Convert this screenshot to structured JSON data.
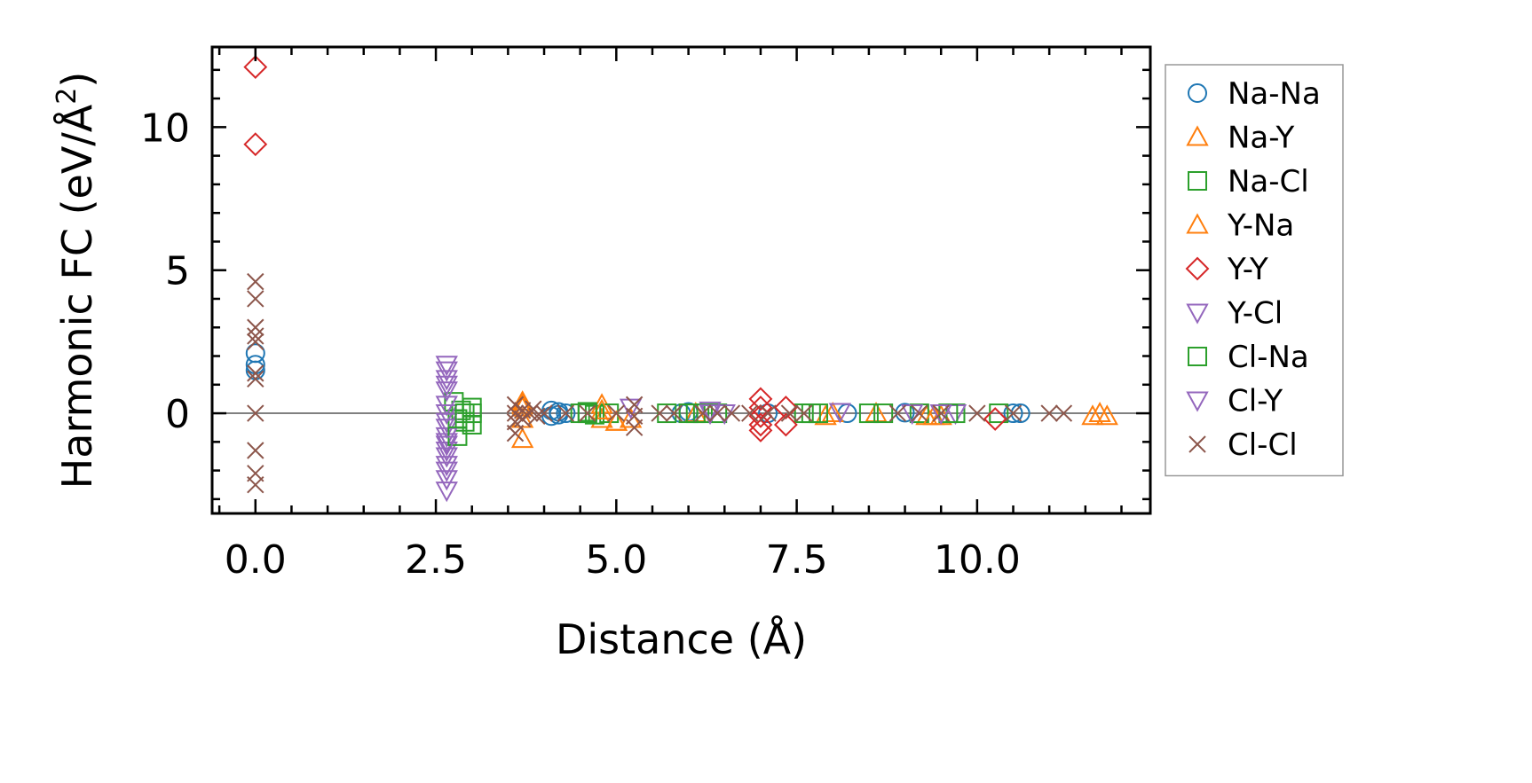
{
  "chart_data": {
    "type": "scatter",
    "title": "",
    "xlabel": "Distance (Å)",
    "ylabel": "Harmonic FC (eV/Å²)",
    "ylabel_parts": {
      "main": "Harmonic FC (eV/Å",
      "sup": "2",
      "close": ")"
    },
    "xlim": [
      -0.6,
      12.4
    ],
    "ylim": [
      -3.5,
      12.8
    ],
    "xticks": [
      0.0,
      2.5,
      5.0,
      7.5,
      10.0
    ],
    "xtick_labels": [
      "0.0",
      "2.5",
      "5.0",
      "7.5",
      "10.0"
    ],
    "yticks": [
      0,
      5,
      10
    ],
    "ytick_labels": [
      "0",
      "5",
      "10"
    ],
    "grid": false,
    "reference_line_y": 0,
    "legend_position": "outside-right",
    "series": [
      {
        "name": "Na-Na",
        "marker": "circle",
        "color": "#1f77b4",
        "points": [
          [
            0,
            2.1
          ],
          [
            0,
            1.7
          ],
          [
            0,
            1.5
          ],
          [
            4.1,
            0.1
          ],
          [
            4.1,
            -0.1
          ],
          [
            4.2,
            0.05
          ],
          [
            4.2,
            -0.05
          ],
          [
            4.3,
            0.0
          ],
          [
            5.9,
            0.0
          ],
          [
            6.0,
            0.05
          ],
          [
            7.1,
            0.0
          ],
          [
            8.2,
            0.0
          ],
          [
            9.0,
            0.02
          ],
          [
            10.5,
            0.0
          ],
          [
            10.6,
            0.0
          ]
        ]
      },
      {
        "name": "Na-Y",
        "marker": "triangle-up",
        "color": "#ff7f0e",
        "points": [
          [
            3.7,
            0.4
          ],
          [
            3.7,
            0.2
          ],
          [
            3.7,
            -0.2
          ],
          [
            3.7,
            -0.9
          ],
          [
            4.8,
            0.3
          ],
          [
            4.8,
            -0.2
          ],
          [
            5.0,
            -0.3
          ],
          [
            5.2,
            -0.2
          ],
          [
            6.1,
            0.0
          ],
          [
            7.9,
            -0.1
          ],
          [
            8.0,
            0.0
          ],
          [
            8.6,
            0.0
          ],
          [
            9.3,
            -0.1
          ],
          [
            9.5,
            -0.1
          ],
          [
            11.6,
            -0.1
          ],
          [
            11.8,
            -0.1
          ]
        ]
      },
      {
        "name": "Na-Cl",
        "marker": "square",
        "color": "#2ca02c",
        "points": [
          [
            2.75,
            0.4
          ],
          [
            2.8,
            -0.2
          ],
          [
            2.85,
            0.1
          ],
          [
            2.9,
            -0.3
          ],
          [
            3.0,
            -0.4
          ],
          [
            3.0,
            0.2
          ],
          [
            3.0,
            0.0
          ],
          [
            4.5,
            0.0
          ],
          [
            4.6,
            0.05
          ],
          [
            4.7,
            -0.05
          ],
          [
            4.9,
            0.0
          ],
          [
            5.7,
            0.0
          ],
          [
            6.0,
            0.0
          ],
          [
            6.2,
            0.0
          ],
          [
            6.4,
            0.0
          ],
          [
            7.6,
            0.0
          ],
          [
            7.8,
            0.0
          ],
          [
            8.5,
            0.0
          ],
          [
            8.7,
            0.0
          ],
          [
            9.2,
            0.0
          ],
          [
            9.7,
            0.0
          ],
          [
            10.3,
            0.0
          ]
        ]
      },
      {
        "name": "Y-Na",
        "marker": "triangle-up",
        "color": "#ff7f0e",
        "points": [
          [
            3.7,
            0.3
          ],
          [
            4.8,
            0.1
          ],
          [
            5.0,
            -0.3
          ],
          [
            9.4,
            -0.1
          ],
          [
            11.7,
            0.0
          ]
        ]
      },
      {
        "name": "Y-Y",
        "marker": "diamond",
        "color": "#d62728",
        "points": [
          [
            0,
            12.1
          ],
          [
            0,
            9.4
          ],
          [
            7.0,
            0.5
          ],
          [
            7.0,
            0.2
          ],
          [
            7.0,
            -0.1
          ],
          [
            7.0,
            -0.4
          ],
          [
            7.0,
            -0.6
          ],
          [
            7.35,
            0.2
          ],
          [
            7.35,
            -0.4
          ],
          [
            10.25,
            -0.2
          ]
        ]
      },
      {
        "name": "Y-Cl",
        "marker": "triangle-down",
        "color": "#9467bd",
        "points": [
          [
            2.65,
            1.7
          ],
          [
            2.65,
            1.5
          ],
          [
            2.65,
            1.2
          ],
          [
            2.65,
            1.0
          ],
          [
            2.65,
            0.3
          ],
          [
            2.65,
            0.0
          ],
          [
            2.65,
            -0.3
          ],
          [
            2.65,
            -0.5
          ],
          [
            2.65,
            -0.8
          ],
          [
            2.65,
            -1.0
          ],
          [
            2.65,
            -1.3
          ],
          [
            2.65,
            -1.5
          ],
          [
            2.65,
            -1.8
          ],
          [
            2.65,
            -2.0
          ],
          [
            2.65,
            -2.3
          ],
          [
            2.65,
            -2.7
          ],
          [
            5.2,
            0.2
          ],
          [
            6.3,
            0.1
          ],
          [
            6.5,
            0.0
          ],
          [
            8.1,
            0.05
          ],
          [
            9.1,
            0.0
          ],
          [
            9.7,
            0.0
          ]
        ]
      },
      {
        "name": "Cl-Na",
        "marker": "square",
        "color": "#2ca02c",
        "points": [
          [
            2.8,
            -0.8
          ],
          [
            2.9,
            0.0
          ],
          [
            4.6,
            0.0
          ],
          [
            6.1,
            0.0
          ],
          [
            7.7,
            0.0
          ],
          [
            9.6,
            0.0
          ]
        ]
      },
      {
        "name": "Cl-Y",
        "marker": "triangle-down",
        "color": "#9467bd",
        "points": [
          [
            2.65,
            0.8
          ],
          [
            2.65,
            -1.1
          ],
          [
            6.3,
            0.0
          ],
          [
            9.5,
            0.0
          ]
        ]
      },
      {
        "name": "Cl-Cl",
        "marker": "x",
        "color": "#8c564b",
        "points": [
          [
            0,
            4.6
          ],
          [
            0,
            4.0
          ],
          [
            0,
            3.0
          ],
          [
            0,
            2.7
          ],
          [
            0,
            2.5
          ],
          [
            0,
            1.4
          ],
          [
            0,
            1.2
          ],
          [
            0,
            0.0
          ],
          [
            0,
            -1.3
          ],
          [
            0,
            -2.1
          ],
          [
            0,
            -2.5
          ],
          [
            3.6,
            0.3
          ],
          [
            3.6,
            0.0
          ],
          [
            3.6,
            -0.3
          ],
          [
            3.6,
            -0.7
          ],
          [
            3.7,
            0.1
          ],
          [
            3.7,
            -0.2
          ],
          [
            3.8,
            0.0
          ],
          [
            3.85,
            0.15
          ],
          [
            3.9,
            -0.1
          ],
          [
            4.0,
            0.0
          ],
          [
            4.3,
            0.0
          ],
          [
            4.6,
            0.0
          ],
          [
            5.0,
            0.0
          ],
          [
            5.25,
            0.3
          ],
          [
            5.25,
            -0.1
          ],
          [
            5.25,
            -0.5
          ],
          [
            5.6,
            0.0
          ],
          [
            5.8,
            0.0
          ],
          [
            6.2,
            0.0
          ],
          [
            6.4,
            0.0
          ],
          [
            6.6,
            0.0
          ],
          [
            6.85,
            0.0
          ],
          [
            7.1,
            0.0
          ],
          [
            7.4,
            0.0
          ],
          [
            7.6,
            0.0
          ],
          [
            8.9,
            0.0
          ],
          [
            9.2,
            0.0
          ],
          [
            9.5,
            0.0
          ],
          [
            10.0,
            0.0
          ],
          [
            10.5,
            0.0
          ],
          [
            11.0,
            0.0
          ],
          [
            11.2,
            0.0
          ]
        ]
      }
    ]
  }
}
